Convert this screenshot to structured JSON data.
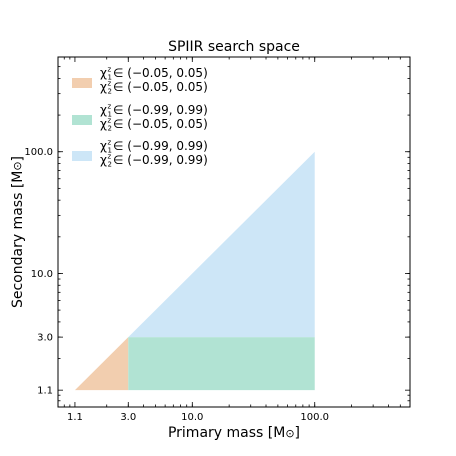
{
  "chart_data": {
    "type": "area",
    "title": "SPIIR search space",
    "xlabel": "Primary mass [M",
    "ylabel": "Secondary mass [M",
    "label_unit_symbol": "⊙",
    "label_close": "]",
    "xscale": "log",
    "yscale": "log",
    "xlim": [
      0.8,
      600
    ],
    "ylim": [
      0.8,
      600
    ],
    "xticks": [
      1.1,
      3.0,
      10.0,
      100.0
    ],
    "xtick_labels": [
      "1.1",
      "3.0",
      "10.0",
      "100.0"
    ],
    "yticks": [
      1.1,
      3.0,
      10.0,
      100.0
    ],
    "ytick_labels": [
      "1.1",
      "3.0",
      "10.0",
      "100.0"
    ],
    "grid": false,
    "legend_position": "top-left",
    "series": [
      {
        "color": "#f2ceaf",
        "polygon": [
          [
            1.1,
            1.1
          ],
          [
            3.0,
            1.1
          ],
          [
            3.0,
            3.0
          ]
        ],
        "legend": {
          "line1": {
            "sym": "χ",
            "sup": "z",
            "sub": "1",
            "rest": " ∈ (−0.05, 0.05)"
          },
          "line2": {
            "sym": "χ",
            "sup": "z",
            "sub": "2",
            "rest": " ∈ (−0.05, 0.05)"
          }
        }
      },
      {
        "color": "#b1e3d3",
        "polygon": [
          [
            3.0,
            1.1
          ],
          [
            100.0,
            1.1
          ],
          [
            100.0,
            3.0
          ],
          [
            3.0,
            3.0
          ]
        ],
        "legend": {
          "line1": {
            "sym": "χ",
            "sup": "z",
            "sub": "1",
            "rest": " ∈ (−0.99, 0.99)"
          },
          "line2": {
            "sym": "χ",
            "sup": "z",
            "sub": "2",
            "rest": " ∈ (−0.05, 0.05)"
          }
        }
      },
      {
        "color": "#cde6f7",
        "polygon": [
          [
            3.0,
            3.0
          ],
          [
            100.0,
            3.0
          ],
          [
            100.0,
            100.0
          ]
        ],
        "legend": {
          "line1": {
            "sym": "χ",
            "sup": "z",
            "sub": "1",
            "rest": " ∈ (−0.99, 0.99)"
          },
          "line2": {
            "sym": "χ",
            "sup": "z",
            "sub": "2",
            "rest": " ∈ (−0.99, 0.99)"
          }
        }
      }
    ]
  }
}
